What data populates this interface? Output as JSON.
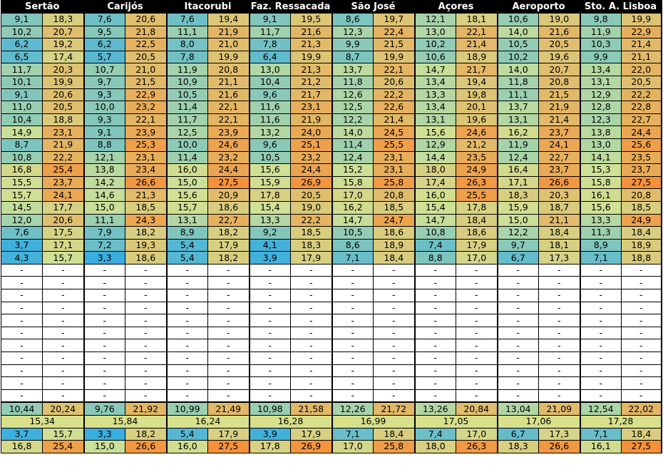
{
  "stations": [
    "Sertão",
    "Carijós",
    "Itacorubi",
    "Faz. Ressacada",
    "São José",
    "Açores",
    "Aeroporto",
    "Sto. A. Lisboa"
  ],
  "daily_rows": [
    [
      [
        "9,1",
        "18,3"
      ],
      [
        "7,6",
        "20,6"
      ],
      [
        "7,6",
        "19,4"
      ],
      [
        "9,1",
        "19,5"
      ],
      [
        "8,6",
        "19,7"
      ],
      [
        "12,1",
        "18,1"
      ],
      [
        "10,6",
        "19,0"
      ],
      [
        "9,8",
        "19,9"
      ]
    ],
    [
      [
        "10,2",
        "20,7"
      ],
      [
        "9,5",
        "21,8"
      ],
      [
        "11,1",
        "21,9"
      ],
      [
        "11,7",
        "21,6"
      ],
      [
        "12,3",
        "22,4"
      ],
      [
        "13,0",
        "22,1"
      ],
      [
        "14,0",
        "21,6"
      ],
      [
        "11,9",
        "22,9"
      ]
    ],
    [
      [
        "6,2",
        "19,2"
      ],
      [
        "6,2",
        "22,5"
      ],
      [
        "8,0",
        "21,0"
      ],
      [
        "7,8",
        "21,3"
      ],
      [
        "9,9",
        "21,5"
      ],
      [
        "10,2",
        "21,4"
      ],
      [
        "10,5",
        "20,5"
      ],
      [
        "10,3",
        "21,4"
      ]
    ],
    [
      [
        "6,5",
        "17,4"
      ],
      [
        "5,7",
        "20,5"
      ],
      [
        "7,8",
        "19,9"
      ],
      [
        "6,4",
        "19,9"
      ],
      [
        "8,7",
        "19,9"
      ],
      [
        "10,6",
        "18,9"
      ],
      [
        "10,2",
        "19,6"
      ],
      [
        "9,9",
        "21,1"
      ]
    ],
    [
      [
        "11,7",
        "20,3"
      ],
      [
        "10,7",
        "21,0"
      ],
      [
        "11,9",
        "20,8"
      ],
      [
        "13,0",
        "21,3"
      ],
      [
        "13,7",
        "22,1"
      ],
      [
        "14,7",
        "21,7"
      ],
      [
        "14,0",
        "20,7"
      ],
      [
        "13,4",
        "22,0"
      ]
    ],
    [
      [
        "10,1",
        "19,9"
      ],
      [
        "9,7",
        "21,5"
      ],
      [
        "10,9",
        "21,1"
      ],
      [
        "10,4",
        "21,2"
      ],
      [
        "11,8",
        "20,6"
      ],
      [
        "13,4",
        "19,4"
      ],
      [
        "11,8",
        "20,8"
      ],
      [
        "13,1",
        "20,5"
      ]
    ],
    [
      [
        "9,1",
        "20,6"
      ],
      [
        "9,3",
        "22,9"
      ],
      [
        "10,5",
        "21,6"
      ],
      [
        "9,6",
        "21,7"
      ],
      [
        "12,6",
        "22,2"
      ],
      [
        "13,3",
        "19,8"
      ],
      [
        "11,1",
        "21,5"
      ],
      [
        "12,9",
        "22,2"
      ]
    ],
    [
      [
        "11,0",
        "20,5"
      ],
      [
        "10,0",
        "23,2"
      ],
      [
        "11,4",
        "22,1"
      ],
      [
        "11,6",
        "23,1"
      ],
      [
        "12,5",
        "22,6"
      ],
      [
        "13,4",
        "20,1"
      ],
      [
        "13,7",
        "21,9"
      ],
      [
        "12,8",
        "22,8"
      ]
    ],
    [
      [
        "10,4",
        "18,8"
      ],
      [
        "9,3",
        "22,1"
      ],
      [
        "11,7",
        "22,1"
      ],
      [
        "11,6",
        "21,9"
      ],
      [
        "12,2",
        "21,4"
      ],
      [
        "13,1",
        "19,6"
      ],
      [
        "13,1",
        "21,4"
      ],
      [
        "12,3",
        "22,7"
      ]
    ],
    [
      [
        "14,9",
        "23,1"
      ],
      [
        "9,1",
        "23,9"
      ],
      [
        "12,5",
        "23,9"
      ],
      [
        "13,2",
        "24,0"
      ],
      [
        "14,0",
        "24,5"
      ],
      [
        "15,6",
        "24,6"
      ],
      [
        "16,2",
        "23,7"
      ],
      [
        "13,8",
        "24,4"
      ]
    ],
    [
      [
        "8,7",
        "21,9"
      ],
      [
        "8,8",
        "25,3"
      ],
      [
        "10,0",
        "24,6"
      ],
      [
        "9,6",
        "25,1"
      ],
      [
        "11,4",
        "25,5"
      ],
      [
        "12,9",
        "21,2"
      ],
      [
        "11,9",
        "24,1"
      ],
      [
        "13,0",
        "25,6"
      ]
    ],
    [
      [
        "10,8",
        "22,2"
      ],
      [
        "12,1",
        "23,1"
      ],
      [
        "11,4",
        "23,2"
      ],
      [
        "10,5",
        "23,2"
      ],
      [
        "12,4",
        "23,1"
      ],
      [
        "14,4",
        "23,5"
      ],
      [
        "12,4",
        "22,7"
      ],
      [
        "14,1",
        "23,5"
      ]
    ],
    [
      [
        "16,8",
        "25,4"
      ],
      [
        "13,8",
        "23,4"
      ],
      [
        "16,0",
        "24,4"
      ],
      [
        "15,6",
        "24,4"
      ],
      [
        "15,2",
        "23,1"
      ],
      [
        "18,0",
        "24,9"
      ],
      [
        "16,4",
        "23,7"
      ],
      [
        "15,3",
        "23,7"
      ]
    ],
    [
      [
        "15,5",
        "23,7"
      ],
      [
        "14,2",
        "26,6"
      ],
      [
        "15,0",
        "27,5"
      ],
      [
        "15,9",
        "26,9"
      ],
      [
        "15,8",
        "25,8"
      ],
      [
        "17,4",
        "26,3"
      ],
      [
        "17,1",
        "26,6"
      ],
      [
        "15,8",
        "27,5"
      ]
    ],
    [
      [
        "15,7",
        "24,1"
      ],
      [
        "14,6",
        "21,3"
      ],
      [
        "15,6",
        "20,9"
      ],
      [
        "17,8",
        "20,5"
      ],
      [
        "17,0",
        "20,8"
      ],
      [
        "16,0",
        "25,5"
      ],
      [
        "18,3",
        "20,3"
      ],
      [
        "16,1",
        "20,8"
      ]
    ],
    [
      [
        "14,5",
        "17,7"
      ],
      [
        "15,0",
        "18,5"
      ],
      [
        "15,7",
        "18,6"
      ],
      [
        "15,4",
        "19,0"
      ],
      [
        "16,2",
        "18,5"
      ],
      [
        "15,4",
        "17,8"
      ],
      [
        "15,9",
        "18,7"
      ],
      [
        "15,6",
        "18,5"
      ]
    ],
    [
      [
        "12,0",
        "20,6"
      ],
      [
        "11,1",
        "24,3"
      ],
      [
        "13,1",
        "22,7"
      ],
      [
        "13,3",
        "22,2"
      ],
      [
        "14,7",
        "24,7"
      ],
      [
        "14,7",
        "18,4"
      ],
      [
        "15,0",
        "21,1"
      ],
      [
        "13,3",
        "24,9"
      ]
    ],
    [
      [
        "7,6",
        "17,5"
      ],
      [
        "7,9",
        "18,2"
      ],
      [
        "8,9",
        "18,2"
      ],
      [
        "9,2",
        "18,5"
      ],
      [
        "10,5",
        "18,6"
      ],
      [
        "10,8",
        "18,6"
      ],
      [
        "12,2",
        "18,4"
      ],
      [
        "11,3",
        "18,4"
      ]
    ],
    [
      [
        "3,7",
        "17,1"
      ],
      [
        "7,2",
        "19,3"
      ],
      [
        "5,4",
        "17,9"
      ],
      [
        "4,1",
        "18,3"
      ],
      [
        "8,6",
        "18,9"
      ],
      [
        "7,4",
        "17,9"
      ],
      [
        "9,7",
        "18,1"
      ],
      [
        "8,9",
        "18,9"
      ]
    ],
    [
      [
        "4,3",
        "15,7"
      ],
      [
        "3,3",
        "18,6"
      ],
      [
        "5,4",
        "18,2"
      ],
      [
        "3,9",
        "17,9"
      ],
      [
        "7,1",
        "18,4"
      ],
      [
        "8,8",
        "17,0"
      ],
      [
        "6,7",
        "17,3"
      ],
      [
        "7,1",
        "18,8"
      ]
    ]
  ],
  "empty_rows": 11,
  "empty_placeholder": "-",
  "averages": [
    [
      "10,44",
      "20,24"
    ],
    [
      "9,76",
      "21,92"
    ],
    [
      "10,99",
      "21,49"
    ],
    [
      "10,98",
      "21,58"
    ],
    [
      "12,26",
      "21,72"
    ],
    [
      "13,26",
      "20,84"
    ],
    [
      "13,04",
      "21,09"
    ],
    [
      "12,54",
      "22,02"
    ]
  ],
  "means": [
    "15,34",
    "15,84",
    "16,24",
    "16,28",
    "16,99",
    "17,05",
    "17,06",
    "17,28"
  ],
  "minimums": [
    [
      "3,7",
      "15,7"
    ],
    [
      "3,3",
      "18,2"
    ],
    [
      "5,4",
      "17,9"
    ],
    [
      "3,9",
      "17,9"
    ],
    [
      "7,1",
      "18,4"
    ],
    [
      "7,4",
      "17,0"
    ],
    [
      "6,7",
      "17,3"
    ],
    [
      "7,1",
      "18,4"
    ]
  ],
  "maximums": [
    [
      "16,8",
      "25,4"
    ],
    [
      "15,0",
      "26,6"
    ],
    [
      "16,0",
      "27,5"
    ],
    [
      "17,8",
      "26,9"
    ],
    [
      "17,0",
      "25,8"
    ],
    [
      "18,0",
      "26,3"
    ],
    [
      "18,3",
      "26,6"
    ],
    [
      "16,1",
      "27,5"
    ]
  ],
  "color_scale": {
    "low": "#3aaee0",
    "mid": "#cfe196",
    "high": "#f5913a",
    "min_value": 3.3,
    "max_value": 27.5
  }
}
